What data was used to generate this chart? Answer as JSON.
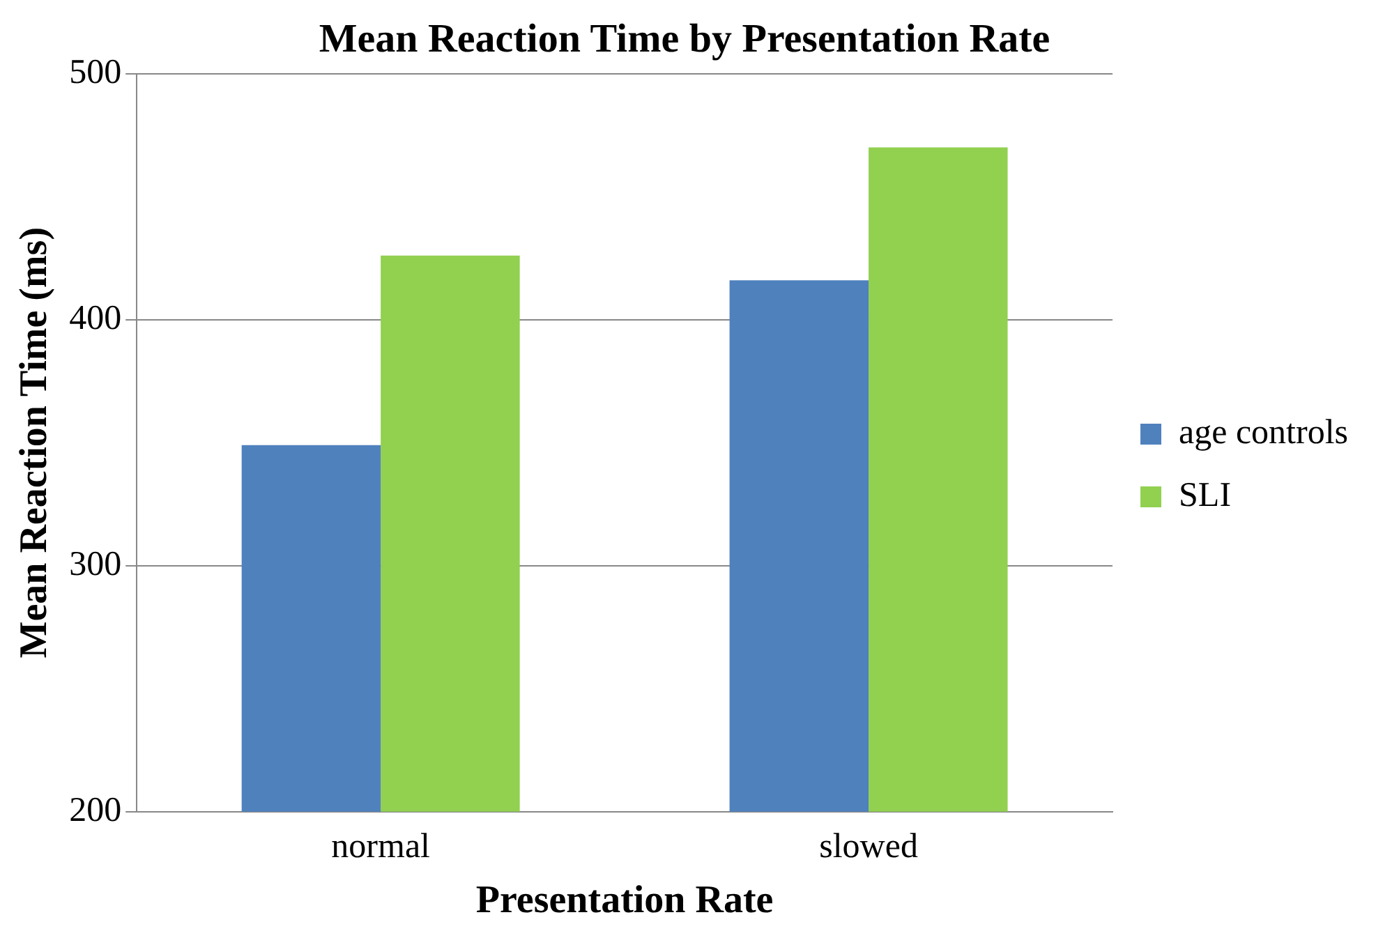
{
  "chart_data": {
    "type": "bar",
    "title": "Mean Reaction Time by Presentation Rate",
    "xlabel": "Presentation Rate",
    "ylabel": "Mean Reaction Time (ms)",
    "categories": [
      "normal",
      "slowed"
    ],
    "series": [
      {
        "name": "age controls",
        "color": "#4f81bd",
        "values": [
          349,
          416
        ]
      },
      {
        "name": "SLI",
        "color": "#92d050",
        "values": [
          426,
          470
        ]
      }
    ],
    "ylim": [
      200,
      500
    ],
    "yticks": [
      200,
      300,
      400,
      500
    ],
    "grid": "y",
    "legend": "right"
  }
}
